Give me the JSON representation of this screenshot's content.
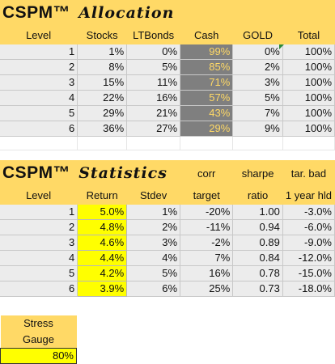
{
  "allocation": {
    "brand": "CSPM™",
    "title": "Allocation",
    "headers": [
      "Level",
      "Stocks",
      "LTBonds",
      "Cash",
      "GOLD",
      "Total"
    ],
    "rows": [
      [
        "1",
        "1%",
        "0%",
        "99%",
        "0%",
        "100%"
      ],
      [
        "2",
        "8%",
        "5%",
        "85%",
        "2%",
        "100%"
      ],
      [
        "3",
        "15%",
        "11%",
        "71%",
        "3%",
        "100%"
      ],
      [
        "4",
        "22%",
        "16%",
        "57%",
        "5%",
        "100%"
      ],
      [
        "5",
        "29%",
        "21%",
        "43%",
        "7%",
        "100%"
      ],
      [
        "6",
        "36%",
        "27%",
        "29%",
        "9%",
        "100%"
      ]
    ]
  },
  "statistics": {
    "brand": "CSPM™",
    "title": "Statistics",
    "headers_top": [
      "",
      "",
      "",
      "corr",
      "sharpe",
      "tar. bad"
    ],
    "headers": [
      "Level",
      "Return",
      "Stdev",
      "target",
      "ratio",
      "1 year hld"
    ],
    "rows": [
      [
        "1",
        "5.0%",
        "1%",
        "-20%",
        "1.00",
        "-3.0%"
      ],
      [
        "2",
        "4.8%",
        "2%",
        "-11%",
        "0.94",
        "-6.0%"
      ],
      [
        "3",
        "4.6%",
        "3%",
        "-2%",
        "0.89",
        "-9.0%"
      ],
      [
        "4",
        "4.4%",
        "4%",
        "7%",
        "0.84",
        "-12.0%"
      ],
      [
        "5",
        "4.2%",
        "5%",
        "16%",
        "0.78",
        "-15.0%"
      ],
      [
        "6",
        "3.9%",
        "6%",
        "25%",
        "0.73",
        "-18.0%"
      ]
    ]
  },
  "stress": {
    "label_line1": "Stress",
    "label_line2": "Gauge",
    "value": "80%"
  },
  "colors": {
    "header_fill": "#ffd966",
    "row_fill": "#ececec",
    "cash_fill": "#7f7f7f",
    "cash_text": "#ffd966",
    "return_fill": "#ffff00"
  }
}
